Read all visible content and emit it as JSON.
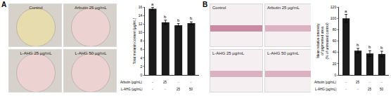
{
  "panels": [
    {
      "letter": "A",
      "photos": [
        "Control",
        "Arbutin 25 µg/mL",
        "L-AHG 25 µg/mL",
        "L-AHG 50 µg/mL"
      ]
    },
    {
      "letter": "B",
      "photos": [
        "Control",
        "Arbutin 25 µg/mL",
        "L-AHG 25 µg/mL",
        "L-AHG 50 µg/mL"
      ]
    }
  ],
  "chart_data": [
    {
      "type": "bar",
      "ylabel": [
        "Total melanin content (µg/mL)"
      ],
      "categories": [
        null,
        null,
        null,
        null
      ],
      "x_rows": [
        {
          "label": "Arbutin (µg/mL)",
          "values": [
            "-",
            "25",
            "-",
            "-"
          ]
        },
        {
          "label": "L-AHG (µg/mL)",
          "values": [
            "-",
            "-",
            "25",
            "50"
          ]
        }
      ],
      "values": [
        15.6,
        12.4,
        11.7,
        12.2
      ],
      "errors": [
        0.3,
        0.5,
        0.4,
        0.3
      ],
      "annotations": [
        "a",
        "b",
        "b",
        "b"
      ],
      "color": "#1a1a1a",
      "ylim": [
        0,
        16
      ],
      "yticks": [
        0,
        2,
        4,
        6,
        8,
        10,
        12,
        14,
        16
      ]
    },
    {
      "type": "bar",
      "ylabel": [
        "Mean relative intensity",
        "of pigmented area",
        "(% of untreated control)"
      ],
      "categories": [
        null,
        null,
        null,
        null
      ],
      "x_rows": [
        {
          "label": "Arbutin (µg/mL)",
          "values": [
            "-",
            "25",
            "-",
            "-"
          ]
        },
        {
          "label": "L-AHG (µg/mL)",
          "values": [
            "-",
            "-",
            "25",
            "50"
          ]
        }
      ],
      "values": [
        100,
        43,
        38,
        37
      ],
      "errors": [
        7,
        4,
        5,
        5
      ],
      "annotations": [
        "a",
        "b",
        "b",
        "b"
      ],
      "color": "#1a1a1a",
      "ylim": [
        0,
        120
      ],
      "yticks": [
        0,
        20,
        40,
        60,
        80,
        100,
        120
      ]
    }
  ]
}
